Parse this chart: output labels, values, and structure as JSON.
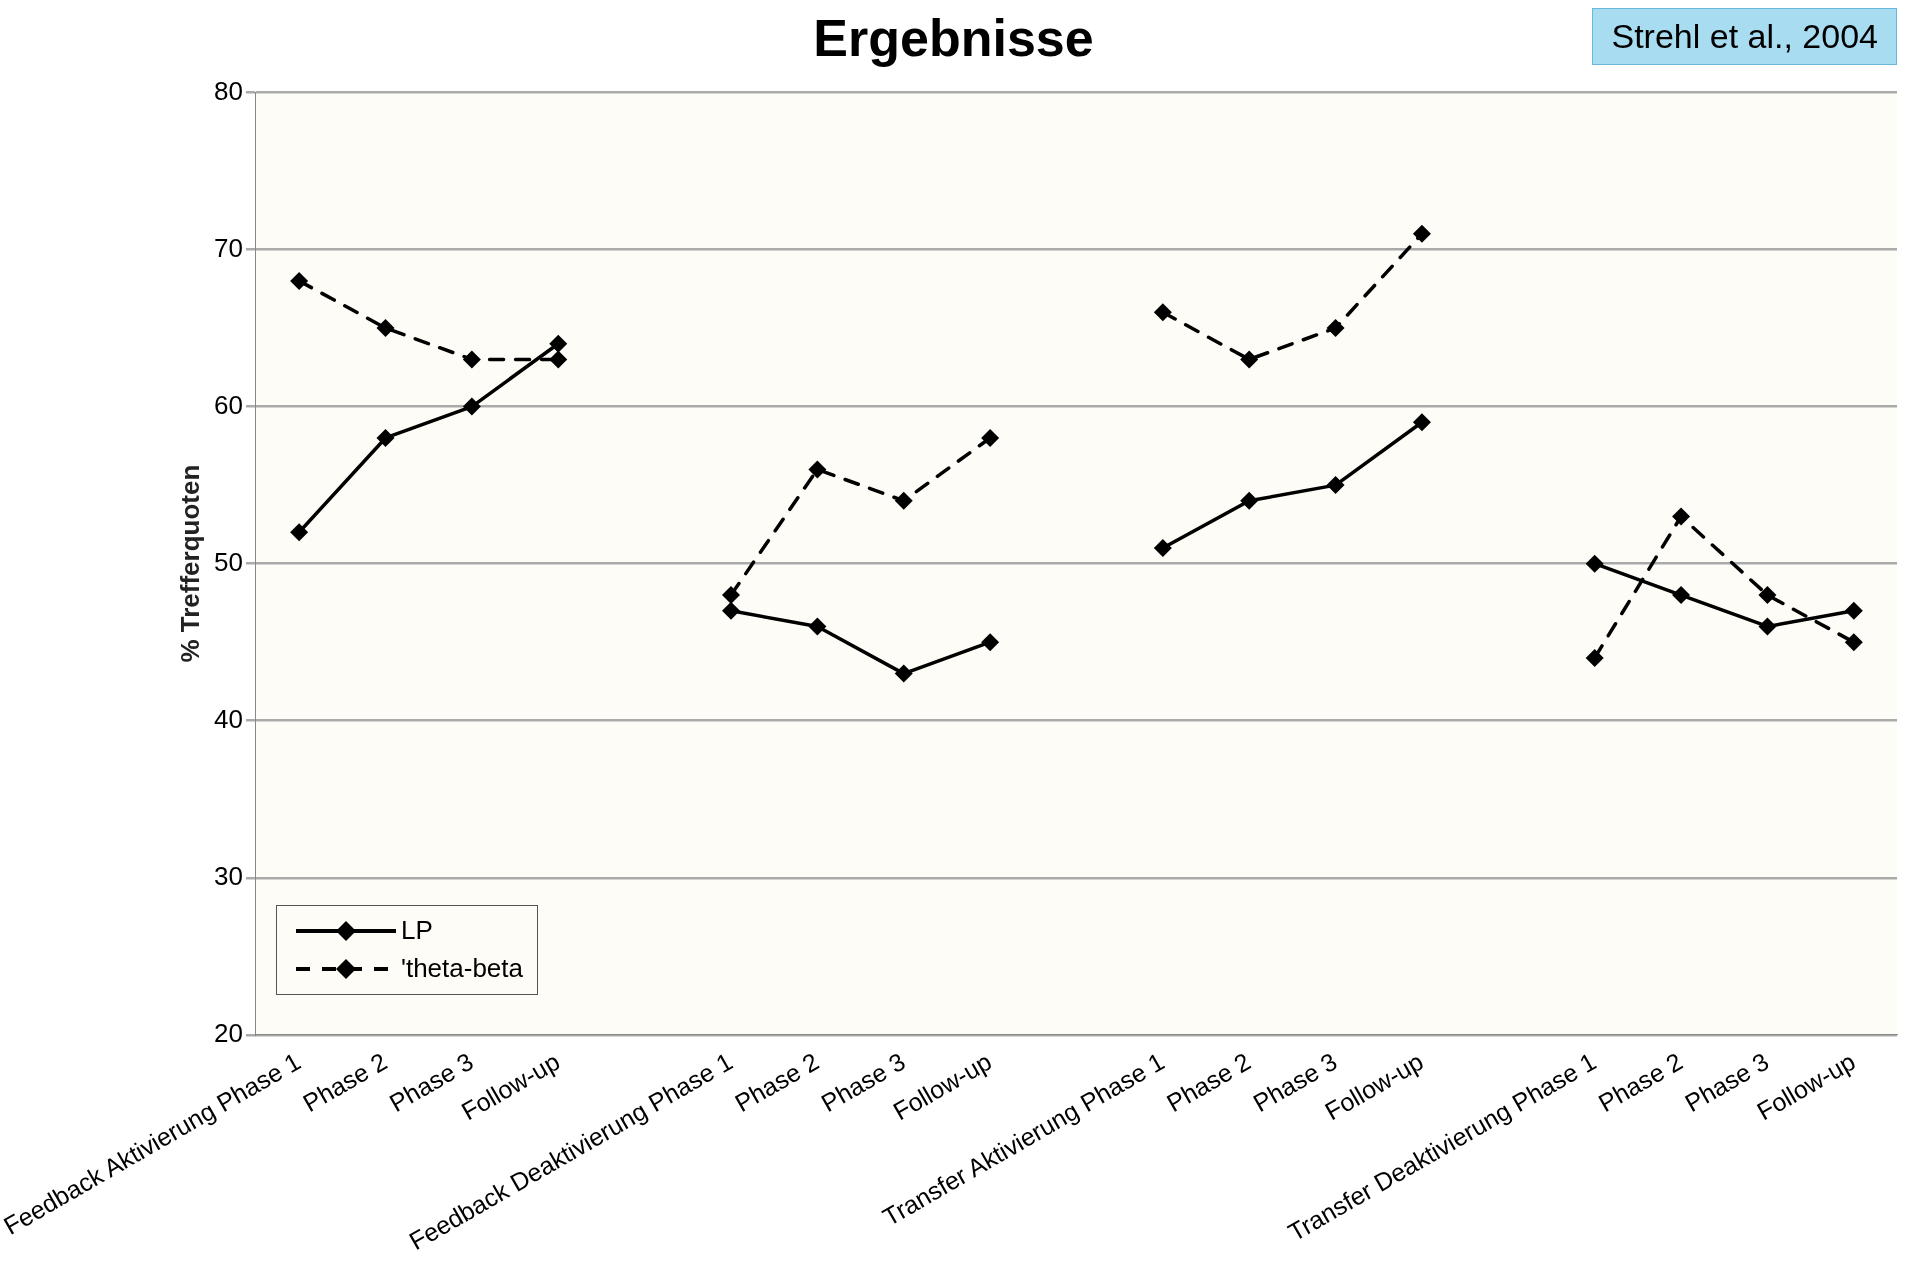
{
  "chart_data": {
    "type": "line",
    "title": "Ergebnisse",
    "ylabel": "% Trefferquoten",
    "annotations": [
      "Strehl et al., 2004"
    ],
    "categories": [
      "Feedback Aktivierung Phase 1",
      "Phase 2",
      "Phase 3",
      "Follow-up",
      null,
      "Feedback Deaktivierung Phase 1",
      "Phase 2",
      "Phase 3",
      "Follow-up",
      null,
      "Transfer Aktivierung Phase 1",
      "Phase 2",
      "Phase 3",
      "Follow-up",
      null,
      "Transfer Deaktivierung Phase 1",
      "Phase 2",
      "Phase 3",
      "Follow-up"
    ],
    "series": [
      {
        "name": "LP",
        "color": "#000000",
        "line_style": "solid",
        "values": [
          52,
          58,
          60,
          64,
          null,
          47,
          46,
          43,
          45,
          null,
          51,
          54,
          55,
          59,
          null,
          50,
          48,
          46,
          47
        ]
      },
      {
        "name": "'theta-beta",
        "color": "#000000",
        "line_style": "dashed",
        "values": [
          68,
          65,
          63,
          63,
          null,
          48,
          56,
          54,
          58,
          null,
          66,
          63,
          65,
          71,
          null,
          44,
          53,
          48,
          45
        ]
      }
    ],
    "ylim": [
      20,
      80
    ],
    "yticks": [
      20,
      30,
      40,
      50,
      60,
      70,
      80
    ],
    "grid": "y",
    "legend": "bottom left",
    "marker": "diamond"
  }
}
